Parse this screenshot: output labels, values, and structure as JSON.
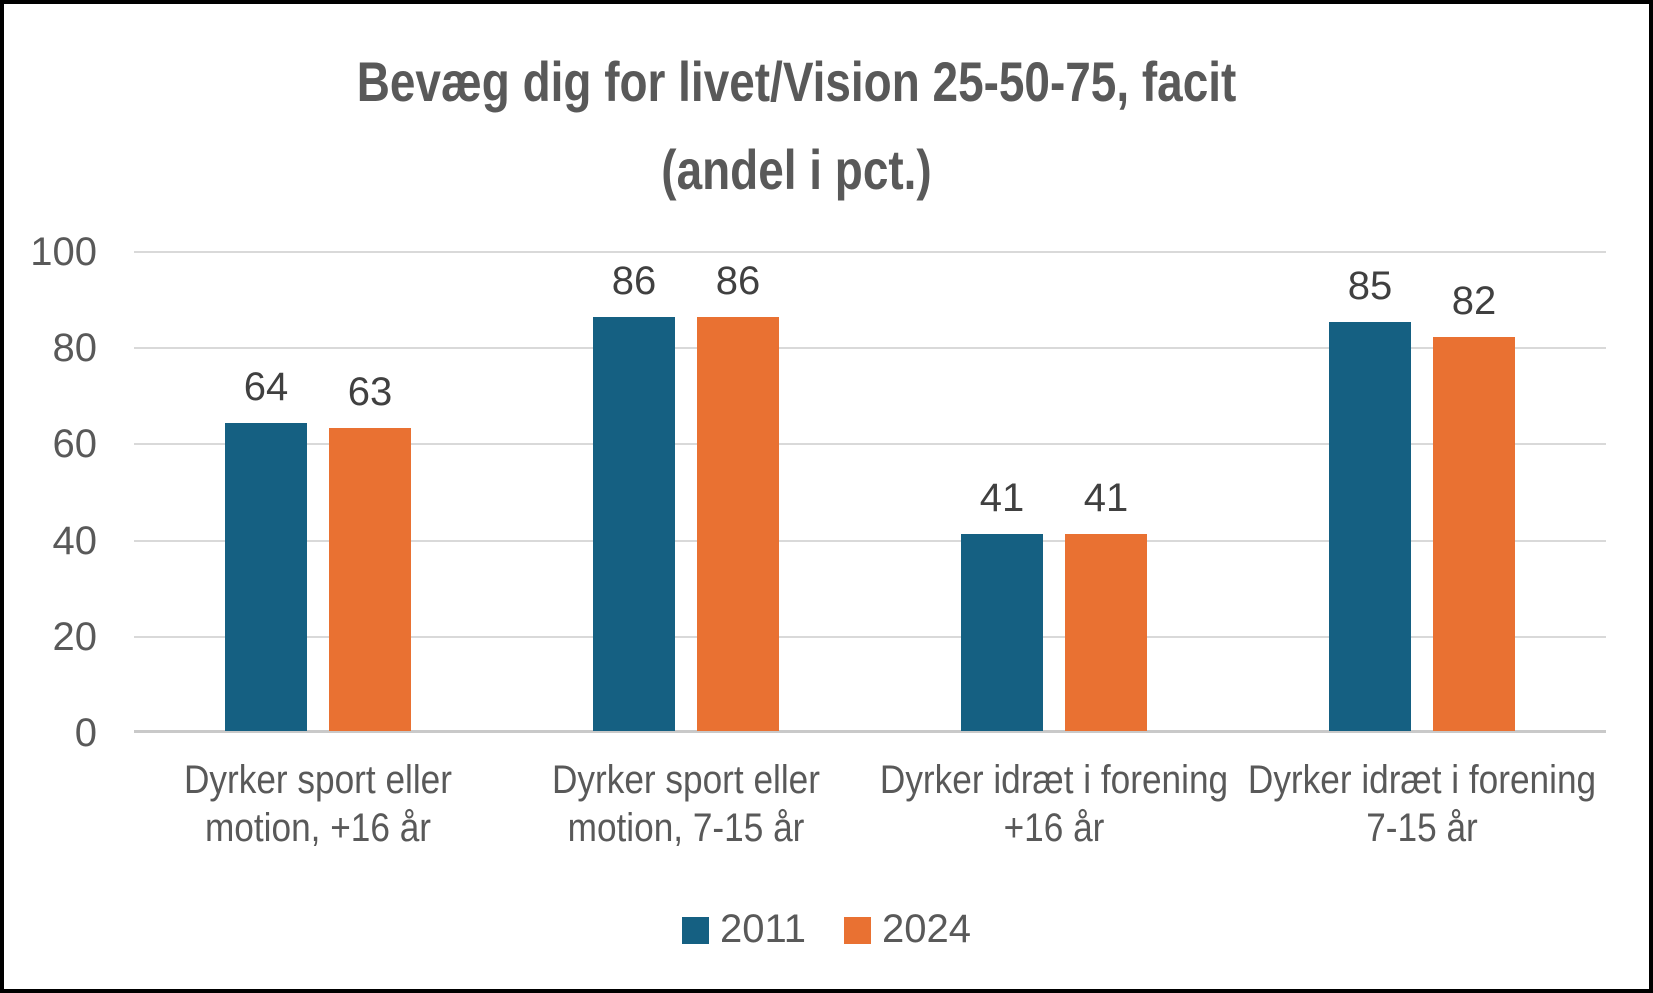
{
  "chart": {
    "title_line1": "Bevæg dig for livet/Vision 25-50-75, facit",
    "title_line2": "(andel i pct.)"
  },
  "chart_data": {
    "type": "bar",
    "title": "Bevæg dig for livet/Vision 25-50-75, facit (andel i pct.)",
    "categories": [
      "Dyrker sport eller motion, +16 år",
      "Dyrker sport eller motion, 7-15 år",
      "Dyrker idræt i forening +16 år",
      "Dyrker idræt i forening 7-15 år"
    ],
    "category_label_lines": [
      [
        "Dyrker sport eller",
        "motion, +16 år"
      ],
      [
        "Dyrker sport eller",
        "motion, 7-15 år"
      ],
      [
        "Dyrker idræt i forening",
        "+16 år"
      ],
      [
        "Dyrker idræt i forening",
        "7-15 år"
      ]
    ],
    "series": [
      {
        "name": "2011",
        "color": "#156082",
        "values": [
          64,
          86,
          41,
          85
        ]
      },
      {
        "name": "2024",
        "color": "#E97132",
        "values": [
          63,
          86,
          41,
          82
        ]
      }
    ],
    "ylim": [
      0,
      100
    ],
    "yticks": [
      0,
      20,
      40,
      60,
      80,
      100
    ],
    "grid": true,
    "legend_position": "bottom",
    "data_labels": true,
    "xlabel": "",
    "ylabel": ""
  },
  "colors": {
    "series_2011": "#156082",
    "series_2024": "#E97132",
    "title_text": "#595959",
    "axis_text": "#595959",
    "data_label_text": "#404040",
    "gridline": "#D9D9D9",
    "axis_line": "#C9C9C9",
    "background": "#FFFFFF",
    "border": "#000000"
  }
}
